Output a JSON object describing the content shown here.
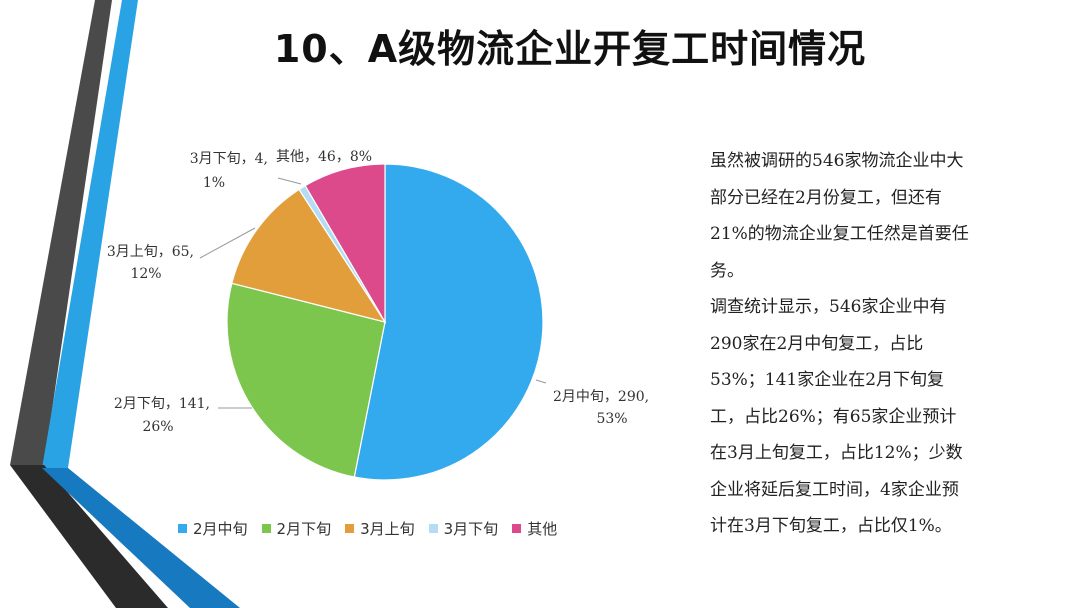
{
  "title": "10、A级物流企业开复工时间情况",
  "chart_data": {
    "type": "pie",
    "title": "",
    "slices": [
      {
        "name": "2月中旬",
        "value": 290,
        "percent": "53%",
        "color": "#33aaee"
      },
      {
        "name": "2月下旬",
        "value": 141,
        "percent": "26%",
        "color": "#7dc64e"
      },
      {
        "name": "3月上旬",
        "value": 65,
        "percent": "12%",
        "color": "#e39e3c"
      },
      {
        "name": "3月下旬",
        "value": 4,
        "percent": "1%",
        "color": "#b4dcf4"
      },
      {
        "name": "其他",
        "value": 46,
        "percent": "8%",
        "color": "#dc4a8c"
      }
    ],
    "legend_position": "bottom",
    "data_labels": [
      {
        "line1": "2月中旬，290,",
        "line2": "53%"
      },
      {
        "line1": "2月下旬，141,",
        "line2": "26%"
      },
      {
        "line1": "3月上旬，65,",
        "line2": "12%"
      },
      {
        "line1": "3月下旬，4,",
        "line2": "1%"
      },
      {
        "line1": "其他，46，8%",
        "line2": ""
      }
    ]
  },
  "description": {
    "paragraph1": "虽然被调研的546家物流企业中大部分已经在2月份复工，但还有21%的物流企业复工任然是首要任务。",
    "paragraph2": "调查统计显示，546家企业中有290家在2月中旬复工，占比53%；141家企业在2月下旬复工，占比26%；有65家企业预计在3月上旬复工，占比12%；少数企业将延后复工时间，4家企业预计在3月下旬复工，占比仅1%。"
  }
}
